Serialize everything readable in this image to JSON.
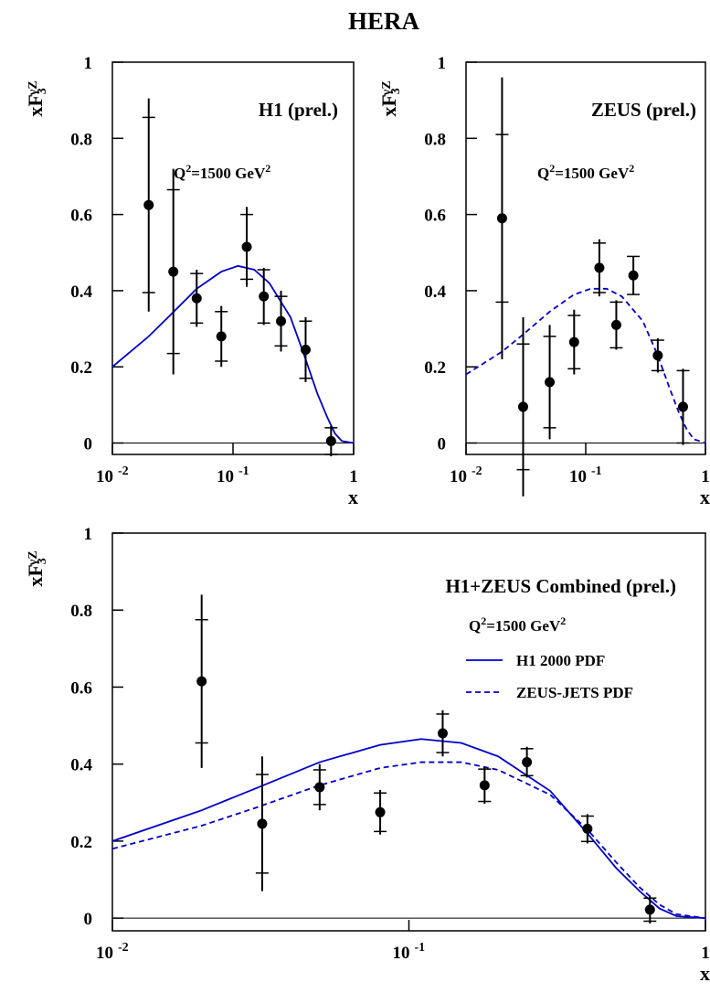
{
  "title": "HERA",
  "chart_data": [
    {
      "type": "scatter",
      "title": "H1 (prel.)",
      "annotation": [
        "Q",
        "2",
        "=1500 GeV",
        "2"
      ],
      "xlabel": "x",
      "ylabel": [
        "xF",
        "3",
        "γZ"
      ],
      "log_x": true,
      "xlim": [
        0.01,
        1
      ],
      "ylim": [
        -0.03,
        1
      ],
      "xticks": [
        {
          "value": 0.01,
          "label": "10",
          "exponent": "-2"
        },
        {
          "value": 0.1,
          "label": "10",
          "exponent": "-1"
        },
        1
      ],
      "yticks": [
        0,
        0.2,
        0.4,
        0.6,
        0.8,
        1
      ],
      "points": {
        "color": "#000000",
        "x": [
          0.02,
          0.032,
          0.05,
          0.08,
          0.13,
          0.18,
          0.25,
          0.4,
          0.65
        ],
        "values": [
          0.625,
          0.45,
          0.38,
          0.28,
          0.515,
          0.385,
          0.32,
          0.245,
          0.005
        ],
        "stat_errors": [
          0.23,
          0.215,
          0.065,
          0.065,
          0.085,
          0.07,
          0.065,
          0.075,
          0.035
        ],
        "errors": [
          0.28,
          0.27,
          0.075,
          0.08,
          0.105,
          0.075,
          0.08,
          0.085,
          0.04
        ]
      },
      "curves": [
        {
          "color": "#0000cc",
          "dashed": false,
          "x": [
            0.01,
            0.02,
            0.03,
            0.05,
            0.08,
            0.11,
            0.15,
            0.2,
            0.3,
            0.4,
            0.5,
            0.6,
            0.7,
            0.8,
            1
          ],
          "values": [
            0.2,
            0.28,
            0.335,
            0.405,
            0.45,
            0.465,
            0.455,
            0.42,
            0.33,
            0.22,
            0.13,
            0.07,
            0.025,
            0.005,
            0
          ]
        }
      ]
    },
    {
      "type": "scatter",
      "title": "ZEUS (prel.)",
      "annotation": [
        "Q",
        "2",
        "=1500 GeV",
        "2"
      ],
      "xlabel": "x",
      "ylabel": [
        "xF",
        "3",
        "γZ"
      ],
      "log_x": true,
      "xlim": [
        0.01,
        1
      ],
      "ylim": [
        -0.03,
        1
      ],
      "xticks": [
        {
          "value": 0.01,
          "label": "10",
          "exponent": "-2"
        },
        {
          "value": 0.1,
          "label": "10",
          "exponent": "-1"
        },
        1
      ],
      "yticks": [
        0,
        0.2,
        0.4,
        0.6,
        0.8,
        1
      ],
      "points": {
        "color": "#000000",
        "x": [
          0.02,
          0.03,
          0.05,
          0.08,
          0.13,
          0.18,
          0.25,
          0.4,
          0.65
        ],
        "values": [
          0.59,
          0.095,
          0.16,
          0.265,
          0.46,
          0.31,
          0.44,
          0.23,
          0.095
        ],
        "stat_errors": [
          0.22,
          0.165,
          0.12,
          0.07,
          0.065,
          0.06,
          0.05,
          0.04,
          0.095
        ],
        "errors": [
          0.37,
          0.235,
          0.15,
          0.085,
          0.075,
          0.065,
          0.05,
          0.045,
          0.1
        ]
      },
      "curves": [
        {
          "color": "#0000cc",
          "dashed": true,
          "x": [
            0.01,
            0.02,
            0.03,
            0.05,
            0.08,
            0.11,
            0.15,
            0.2,
            0.3,
            0.4,
            0.5,
            0.6,
            0.7,
            0.8,
            1
          ],
          "values": [
            0.18,
            0.24,
            0.285,
            0.345,
            0.39,
            0.405,
            0.405,
            0.385,
            0.32,
            0.23,
            0.145,
            0.08,
            0.035,
            0.01,
            0
          ]
        }
      ]
    },
    {
      "type": "scatter",
      "title": "H1+ZEUS Combined (prel.)",
      "annotation": [
        "Q",
        "2",
        "=1500 GeV",
        "2"
      ],
      "xlabel": "x",
      "ylabel": [
        "xF",
        "3",
        "γZ"
      ],
      "log_x": true,
      "xlim": [
        0.01,
        1
      ],
      "ylim": [
        -0.033,
        1
      ],
      "xticks": [
        {
          "value": 0.01,
          "label": "10",
          "exponent": "-2"
        },
        {
          "value": 0.1,
          "label": "10",
          "exponent": "-1"
        },
        1
      ],
      "yticks": [
        0,
        0.2,
        0.4,
        0.6,
        0.8,
        1
      ],
      "points": {
        "color": "#000000",
        "x": [
          0.02,
          0.032,
          0.05,
          0.08,
          0.13,
          0.18,
          0.25,
          0.4,
          0.65
        ],
        "values": [
          0.615,
          0.245,
          0.34,
          0.275,
          0.48,
          0.345,
          0.405,
          0.232,
          0.022
        ],
        "stat_errors": [
          0.16,
          0.128,
          0.045,
          0.05,
          0.05,
          0.042,
          0.035,
          0.033,
          0.03
        ],
        "errors": [
          0.225,
          0.175,
          0.06,
          0.058,
          0.06,
          0.048,
          0.04,
          0.038,
          0.036
        ]
      },
      "curves": [
        {
          "name": "H1 2000 PDF",
          "color": "#0000cc",
          "dashed": false,
          "x": [
            0.01,
            0.02,
            0.03,
            0.05,
            0.08,
            0.11,
            0.15,
            0.2,
            0.3,
            0.4,
            0.5,
            0.6,
            0.7,
            0.8,
            1
          ],
          "values": [
            0.2,
            0.28,
            0.335,
            0.405,
            0.45,
            0.465,
            0.455,
            0.42,
            0.33,
            0.22,
            0.13,
            0.07,
            0.025,
            0.005,
            0
          ]
        },
        {
          "name": "ZEUS-JETS PDF",
          "color": "#0000cc",
          "dashed": true,
          "x": [
            0.01,
            0.02,
            0.03,
            0.05,
            0.08,
            0.11,
            0.15,
            0.2,
            0.3,
            0.4,
            0.5,
            0.6,
            0.7,
            0.8,
            1
          ],
          "values": [
            0.18,
            0.24,
            0.285,
            0.345,
            0.39,
            0.405,
            0.405,
            0.385,
            0.32,
            0.23,
            0.145,
            0.08,
            0.035,
            0.01,
            0
          ]
        }
      ]
    }
  ]
}
